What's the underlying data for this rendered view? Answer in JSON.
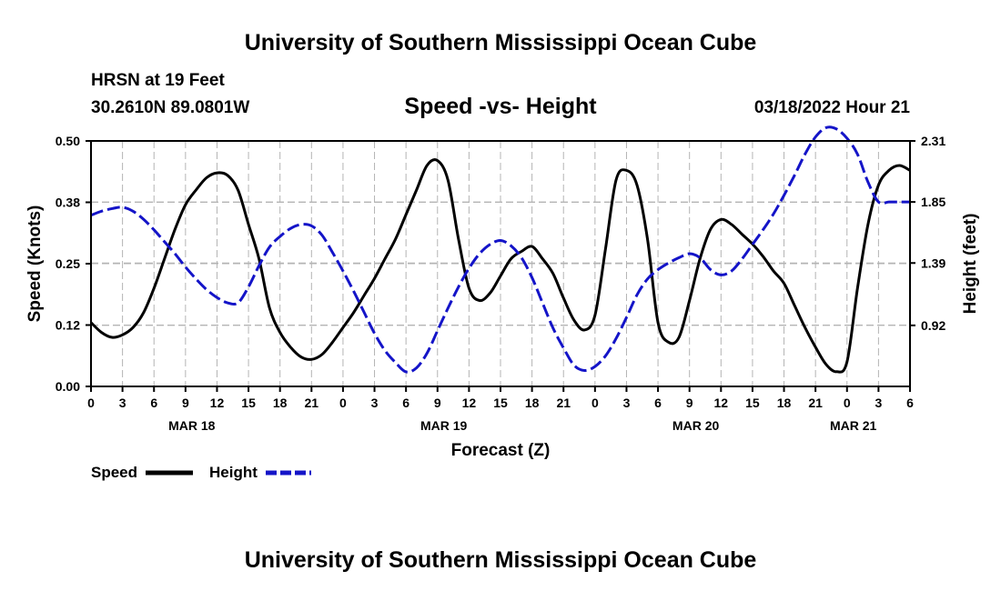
{
  "colors": {
    "speed": "#000000",
    "height": "#1414c8",
    "grid": "#b4b4b4",
    "background": "#ffffff"
  },
  "chart_data": {
    "type": "line",
    "title": "University of Southern Mississippi Ocean Cube",
    "footer_title": "University of Southern Mississippi Ocean Cube",
    "station": "HRSN at 19 Feet",
    "location": "30.2610N  89.0801W",
    "subtitle": "Speed -vs- Height",
    "timestamp": "03/18/2022 Hour 21",
    "xlabel": "Forecast (Z)",
    "ylabel": "Speed (Knots)",
    "y2label": "Height (feet)",
    "xlim": [
      0,
      78
    ],
    "ylim": [
      0,
      0.5
    ],
    "y2lim": [
      0.46,
      2.31
    ],
    "x_tick_labels": [
      "0",
      "3",
      "6",
      "9",
      "12",
      "15",
      "18",
      "21",
      "0",
      "3",
      "6",
      "9",
      "12",
      "15",
      "18",
      "21",
      "0",
      "3",
      "6",
      "9",
      "12",
      "15",
      "18",
      "21",
      "0",
      "3",
      "6"
    ],
    "y_tick_labels": [
      "0.00",
      "0.12",
      "0.25",
      "0.38",
      "0.50"
    ],
    "y_tick_values": [
      0,
      0.125,
      0.25,
      0.375,
      0.5
    ],
    "y2_tick_labels": [
      "0.92",
      "1.39",
      "1.85",
      "2.31"
    ],
    "y2_tick_values": [
      0.92,
      1.39,
      1.85,
      2.31
    ],
    "day_labels": [
      {
        "label": "MAR 18",
        "x": 9.6
      },
      {
        "label": "MAR 19",
        "x": 33.6
      },
      {
        "label": "MAR 20",
        "x": 57.6
      },
      {
        "label": "MAR 21",
        "x": 72.6
      }
    ],
    "legend": {
      "speed": "Speed",
      "height": "Height"
    },
    "series": [
      {
        "name": "Speed",
        "axis": "left",
        "style": "solid",
        "x": [
          0,
          1,
          2,
          3,
          4,
          5,
          6,
          7,
          8,
          9,
          10,
          11,
          12,
          13,
          14,
          15,
          16,
          17,
          18,
          19,
          20,
          21,
          22,
          23,
          24,
          25,
          26,
          27,
          28,
          29,
          30,
          31,
          32,
          33,
          34,
          35,
          36,
          37,
          38,
          39,
          40,
          41,
          42,
          43,
          44,
          45,
          46,
          47,
          48,
          49,
          50,
          51,
          52,
          53,
          54,
          55,
          56,
          57,
          58,
          59,
          60,
          61,
          62,
          63,
          64,
          65,
          66,
          67,
          68,
          69,
          70,
          71,
          72,
          73,
          74,
          75,
          76,
          77,
          78
        ],
        "values": [
          0.13,
          0.11,
          0.1,
          0.105,
          0.12,
          0.15,
          0.2,
          0.26,
          0.32,
          0.37,
          0.4,
          0.425,
          0.435,
          0.43,
          0.4,
          0.33,
          0.26,
          0.16,
          0.11,
          0.08,
          0.06,
          0.055,
          0.065,
          0.09,
          0.12,
          0.15,
          0.185,
          0.22,
          0.26,
          0.3,
          0.35,
          0.4,
          0.45,
          0.46,
          0.42,
          0.3,
          0.2,
          0.175,
          0.19,
          0.225,
          0.26,
          0.275,
          0.285,
          0.26,
          0.23,
          0.18,
          0.135,
          0.115,
          0.145,
          0.28,
          0.42,
          0.44,
          0.41,
          0.3,
          0.13,
          0.09,
          0.1,
          0.175,
          0.26,
          0.32,
          0.34,
          0.33,
          0.31,
          0.29,
          0.265,
          0.235,
          0.21,
          0.165,
          0.12,
          0.08,
          0.045,
          0.03,
          0.05,
          0.2,
          0.33,
          0.41,
          0.44,
          0.45,
          0.44
        ]
      },
      {
        "name": "Height",
        "axis": "right",
        "style": "dashed",
        "x": [
          0,
          1,
          2,
          3,
          4,
          5,
          6,
          7,
          8,
          9,
          10,
          11,
          12,
          13,
          14,
          15,
          16,
          17,
          18,
          19,
          20,
          21,
          22,
          23,
          24,
          25,
          26,
          27,
          28,
          29,
          30,
          31,
          32,
          33,
          34,
          35,
          36,
          37,
          38,
          39,
          40,
          41,
          42,
          43,
          44,
          45,
          46,
          47,
          48,
          49,
          50,
          51,
          52,
          53,
          54,
          55,
          56,
          57,
          58,
          59,
          60,
          61,
          62,
          63,
          64,
          65,
          66,
          67,
          68,
          69,
          70,
          71,
          72,
          73,
          74,
          75,
          76,
          77,
          78
        ],
        "values": [
          1.75,
          1.78,
          1.8,
          1.81,
          1.78,
          1.72,
          1.64,
          1.55,
          1.46,
          1.36,
          1.27,
          1.19,
          1.13,
          1.09,
          1.09,
          1.21,
          1.37,
          1.51,
          1.59,
          1.65,
          1.68,
          1.67,
          1.6,
          1.47,
          1.33,
          1.18,
          1.02,
          0.86,
          0.73,
          0.64,
          0.57,
          0.6,
          0.71,
          0.88,
          1.05,
          1.21,
          1.35,
          1.46,
          1.53,
          1.56,
          1.52,
          1.43,
          1.28,
          1.09,
          0.9,
          0.75,
          0.62,
          0.58,
          0.61,
          0.69,
          0.82,
          0.98,
          1.15,
          1.27,
          1.34,
          1.39,
          1.43,
          1.46,
          1.43,
          1.34,
          1.3,
          1.33,
          1.42,
          1.53,
          1.64,
          1.76,
          1.9,
          2.05,
          2.21,
          2.34,
          2.41,
          2.4,
          2.33,
          2.21,
          2.0,
          1.85,
          1.85,
          1.85,
          1.85
        ]
      }
    ]
  }
}
